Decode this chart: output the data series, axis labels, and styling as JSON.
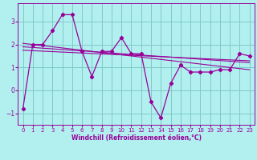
{
  "x": [
    0,
    1,
    2,
    3,
    4,
    5,
    6,
    7,
    8,
    9,
    10,
    11,
    12,
    13,
    14,
    15,
    16,
    17,
    18,
    19,
    20,
    21,
    22,
    23
  ],
  "windchill": [
    -0.8,
    2.0,
    2.0,
    2.6,
    3.3,
    3.3,
    1.7,
    0.6,
    1.7,
    1.7,
    2.3,
    1.6,
    1.6,
    -0.5,
    -1.2,
    0.3,
    1.1,
    0.8,
    0.8,
    0.8,
    0.9,
    0.9,
    1.6,
    1.5
  ],
  "trend1": [
    2.05,
    2.0,
    1.95,
    1.9,
    1.85,
    1.8,
    1.75,
    1.7,
    1.65,
    1.6,
    1.55,
    1.5,
    1.45,
    1.4,
    1.35,
    1.3,
    1.25,
    1.2,
    1.15,
    1.1,
    1.05,
    1.0,
    0.95,
    0.9
  ],
  "trend2": [
    1.9,
    1.87,
    1.84,
    1.81,
    1.78,
    1.75,
    1.72,
    1.69,
    1.66,
    1.63,
    1.6,
    1.57,
    1.54,
    1.51,
    1.48,
    1.45,
    1.42,
    1.39,
    1.36,
    1.33,
    1.3,
    1.27,
    1.24,
    1.21
  ],
  "trend3": [
    1.75,
    1.73,
    1.71,
    1.69,
    1.67,
    1.65,
    1.63,
    1.61,
    1.59,
    1.57,
    1.55,
    1.53,
    1.51,
    1.49,
    1.47,
    1.45,
    1.43,
    1.41,
    1.39,
    1.37,
    1.35,
    1.33,
    1.31,
    1.29
  ],
  "line_color": "#990099",
  "bg_color": "#b2f0f0",
  "grid_color": "#80c8c8",
  "xlabel": "Windchill (Refroidissement éolien,°C)",
  "ylim": [
    -1.5,
    3.8
  ],
  "xlim": [
    -0.5,
    23.5
  ],
  "yticks": [
    -1,
    0,
    1,
    2,
    3
  ],
  "xticks": [
    0,
    1,
    2,
    3,
    4,
    5,
    6,
    7,
    8,
    9,
    10,
    11,
    12,
    13,
    14,
    15,
    16,
    17,
    18,
    19,
    20,
    21,
    22,
    23
  ],
  "tick_fontsize": 5.0,
  "xlabel_fontsize": 5.5
}
